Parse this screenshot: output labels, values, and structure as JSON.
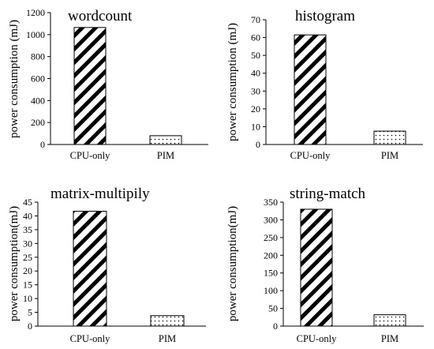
{
  "chart_data": [
    {
      "type": "bar",
      "title": "wordcount",
      "ylabel": "power consumption (mJ)",
      "categories": [
        "CPU-only",
        "PIM"
      ],
      "values": [
        1065,
        80
      ],
      "ylim": [
        0,
        1200
      ],
      "yticks": [
        "0",
        "200",
        "400",
        "600",
        "800",
        "1000",
        "1200"
      ],
      "patterns": [
        "diagonal-stripes",
        "dots"
      ],
      "grid": false
    },
    {
      "type": "bar",
      "title": "histogram",
      "ylabel": "power consumption (mJ)",
      "categories": [
        "CPU-only",
        "PIM"
      ],
      "values": [
        61.5,
        7.5
      ],
      "ylim": [
        0,
        70
      ],
      "yticks": [
        "0",
        "10",
        "20",
        "30",
        "40",
        "50",
        "60",
        "70"
      ],
      "patterns": [
        "diagonal-stripes",
        "dots"
      ],
      "grid": false
    },
    {
      "type": "bar",
      "title": "matrix-multipily",
      "ylabel": "power consumption(mJ)",
      "categories": [
        "CPU-only",
        "PIM"
      ],
      "values": [
        41.7,
        3.8
      ],
      "ylim": [
        0,
        45
      ],
      "yticks": [
        "0",
        "5",
        "10",
        "15",
        "20",
        "25",
        "30",
        "35",
        "40",
        "45"
      ],
      "patterns": [
        "diagonal-stripes",
        "dots"
      ],
      "grid": false
    },
    {
      "type": "bar",
      "title": "string-match",
      "ylabel": "power consumption(mJ)",
      "categories": [
        "CPU-only",
        "PIM"
      ],
      "values": [
        330,
        32
      ],
      "ylim": [
        0,
        350
      ],
      "yticks": [
        "0",
        "50",
        "100",
        "150",
        "200",
        "250",
        "300",
        "350"
      ],
      "patterns": [
        "diagonal-stripes",
        "dots"
      ],
      "grid": false
    }
  ]
}
